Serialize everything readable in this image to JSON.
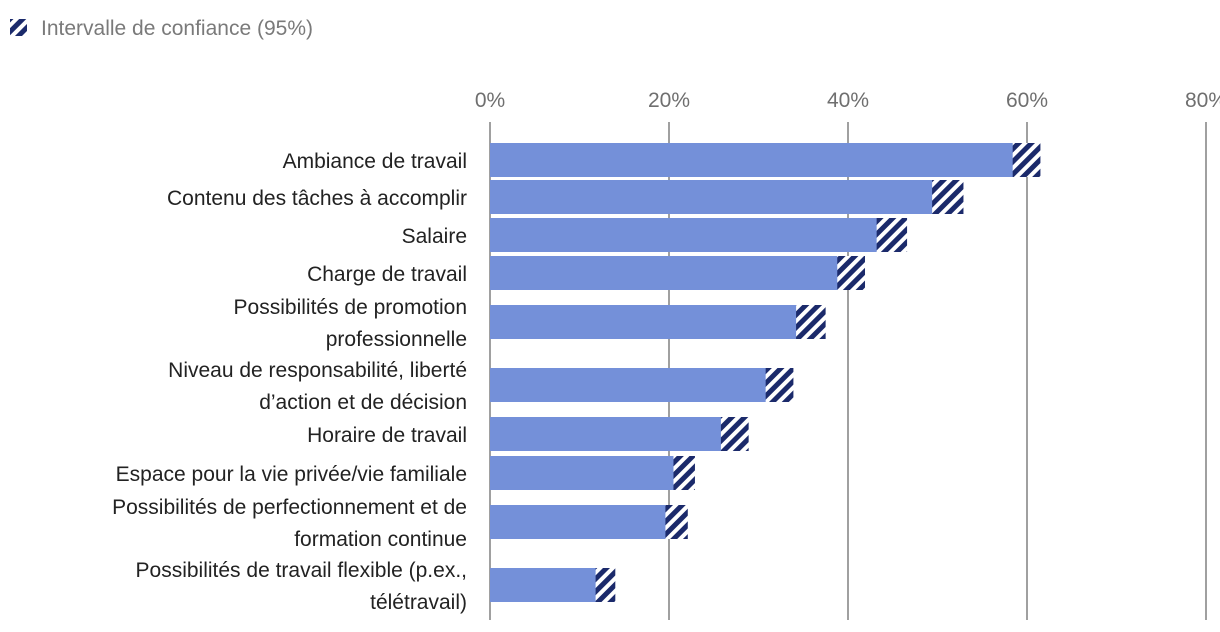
{
  "chart_data": {
    "type": "bar",
    "orientation": "horizontal",
    "legend": {
      "position": "top-left",
      "entries": [
        "Intervalle de confiance (95%)"
      ]
    },
    "x_ticks": [
      "0%",
      "20%",
      "40%",
      "60%",
      "80%"
    ],
    "xlim": [
      0,
      80
    ],
    "grid": true,
    "categories": [
      [
        "Ambiance de travail"
      ],
      [
        "Contenu des tâches à accomplir"
      ],
      [
        "Salaire"
      ],
      [
        "Charge de travail"
      ],
      [
        "Possibilités de promotion",
        "professionnelle"
      ],
      [
        "Niveau de responsabilité, liberté",
        "d’action et de décision"
      ],
      [
        "Horaire de travail"
      ],
      [
        "Espace pour la vie privée/vie familiale"
      ],
      [
        "Possibilités de perfectionnement et de",
        "formation continue"
      ],
      [
        "Possibilités de travail flexible (p.ex.,",
        "télétravail)"
      ]
    ],
    "values": [
      60.4,
      51.8,
      45.6,
      41.0,
      36.6,
      33.0,
      27.7,
      22.1,
      21.3,
      13.0
    ],
    "ci_lower": [
      58.4,
      49.4,
      43.2,
      38.8,
      34.2,
      30.8,
      25.8,
      20.5,
      19.6,
      11.8
    ],
    "ci_upper": [
      61.5,
      52.9,
      46.6,
      41.9,
      37.5,
      33.9,
      28.9,
      22.9,
      22.1,
      14.0
    ]
  },
  "colors": {
    "bar": "#7490d9",
    "ci": "#1b2a6b",
    "grid": "#808080",
    "tick_text": "#6f6f6f",
    "label_text": "#222222",
    "legend_text": "#7a7a7a"
  }
}
